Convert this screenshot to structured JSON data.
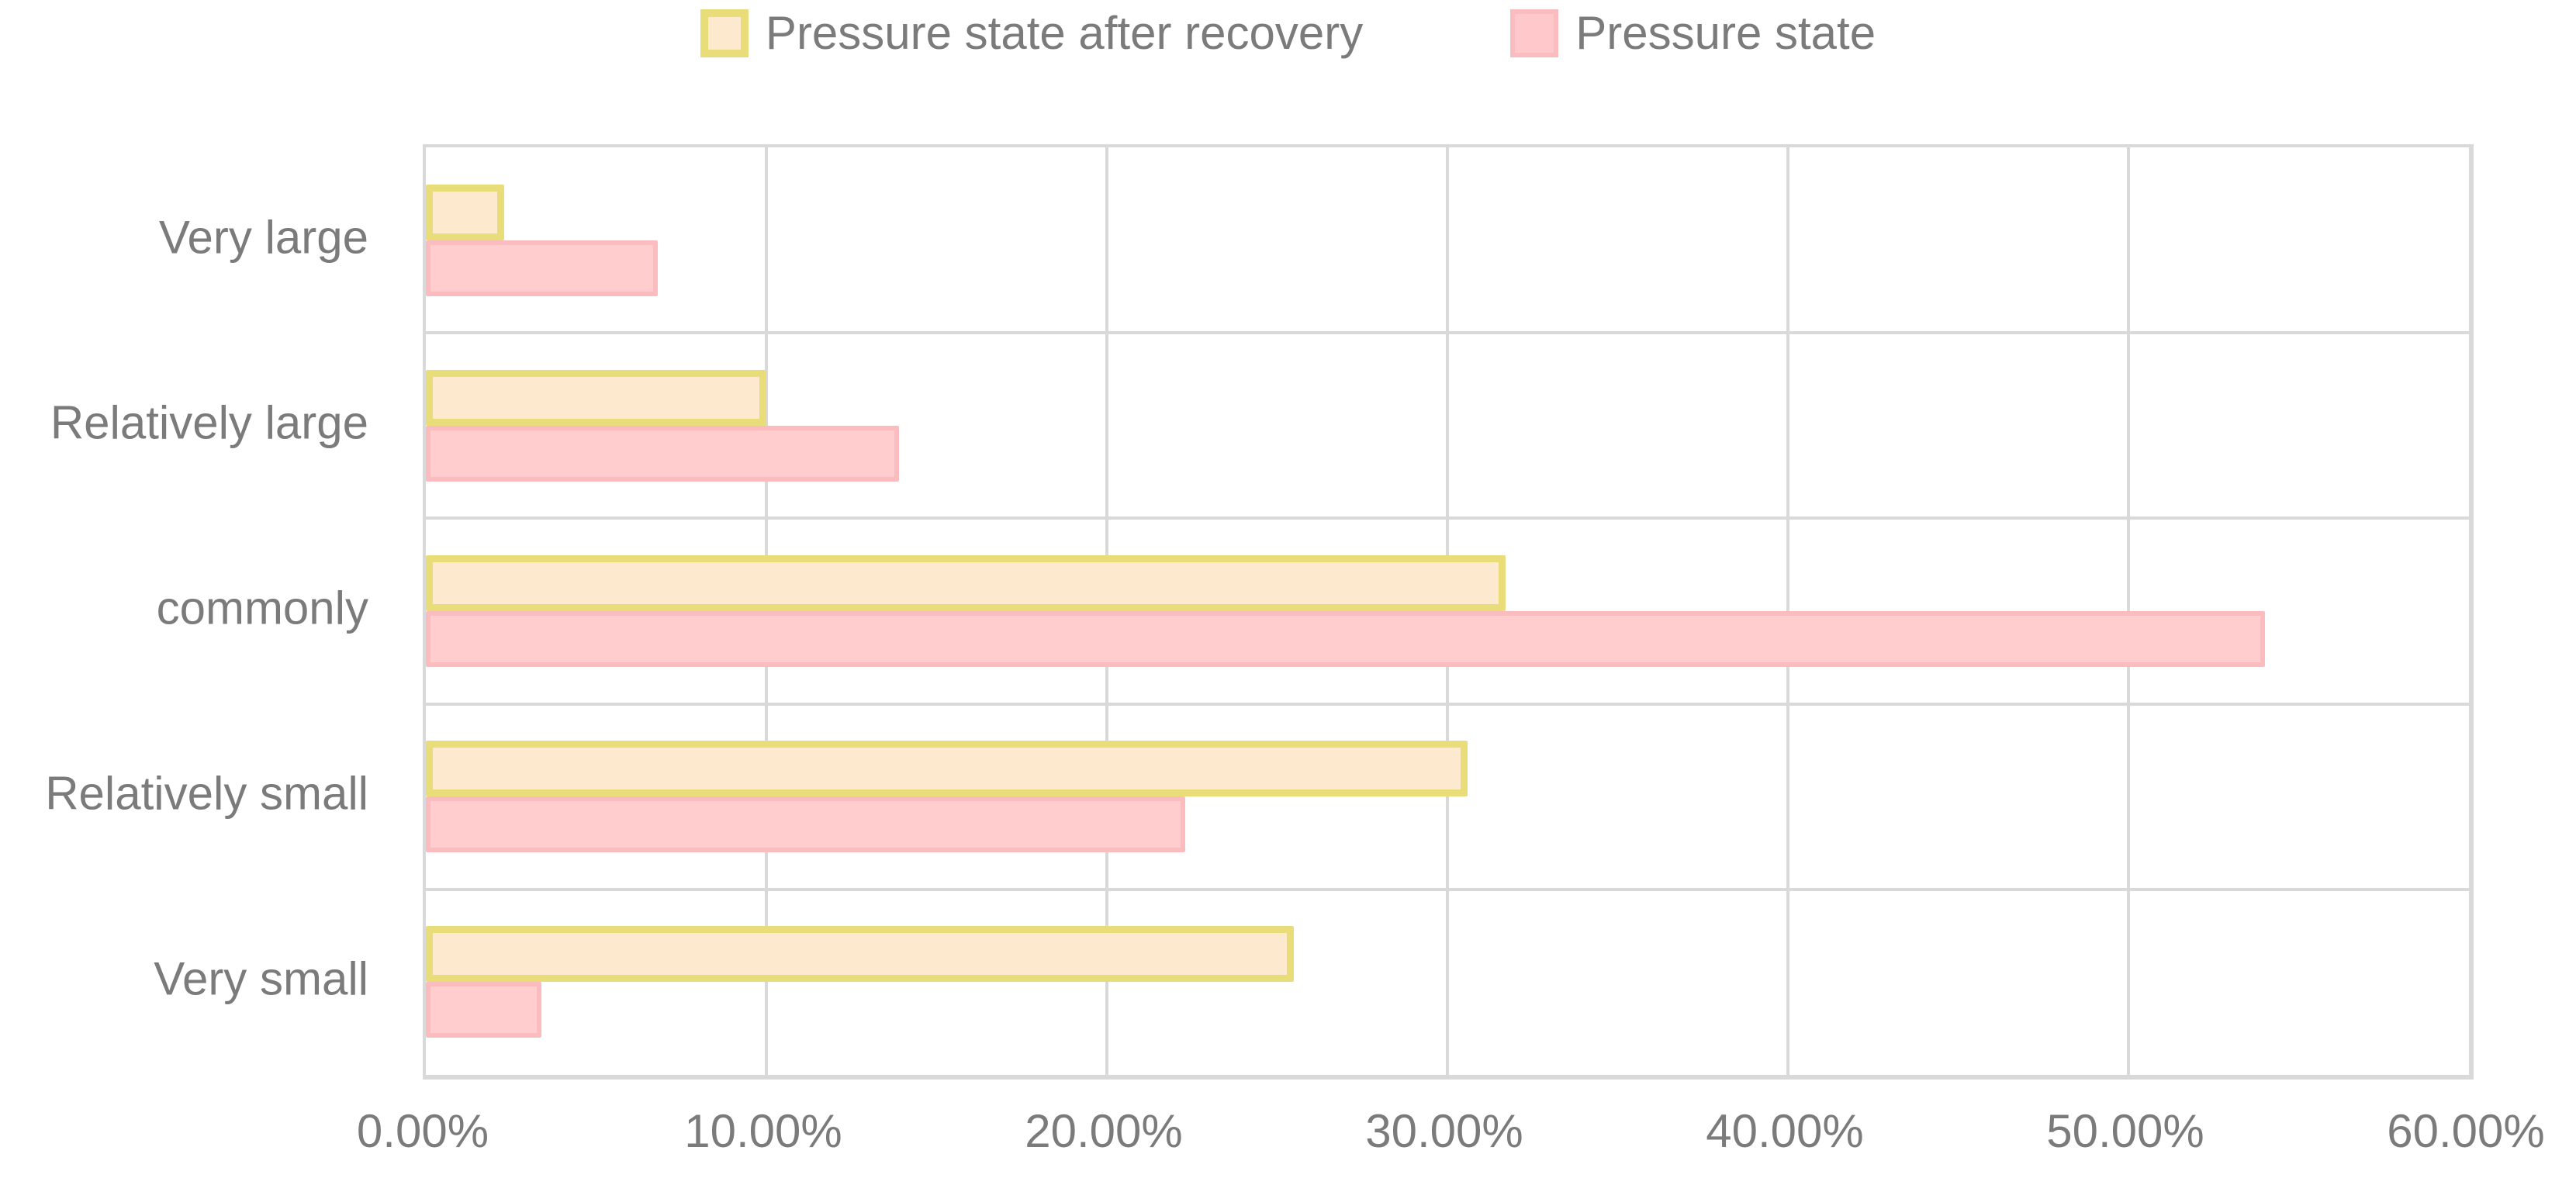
{
  "colors": {
    "series_recovery_fill": "#fde9ce",
    "series_recovery_border": "#e9dd7a",
    "series_state_fill": "#ffcdce",
    "series_state_border": "#fbbcbf",
    "gridline": "#d9d9d9",
    "text": "#7b7b7b"
  },
  "chart_data": {
    "type": "bar",
    "orientation": "horizontal",
    "title": "",
    "xlabel": "",
    "ylabel": "",
    "xlim": [
      0,
      60
    ],
    "grid": true,
    "legend_position": "top-center",
    "categories": [
      "Very large",
      "Relatively large",
      "commonly",
      "Relatively small",
      "Very small"
    ],
    "series": [
      {
        "name": "Pressure state after recovery",
        "values": [
          2.3,
          10.0,
          31.7,
          30.6,
          25.5
        ]
      },
      {
        "name": "Pressure state",
        "values": [
          6.8,
          13.9,
          54.0,
          22.3,
          3.4
        ]
      }
    ],
    "x_tick_labels": [
      "0.00%",
      "10.00%",
      "20.00%",
      "30.00%",
      "40.00%",
      "50.00%",
      "60.00%"
    ]
  }
}
